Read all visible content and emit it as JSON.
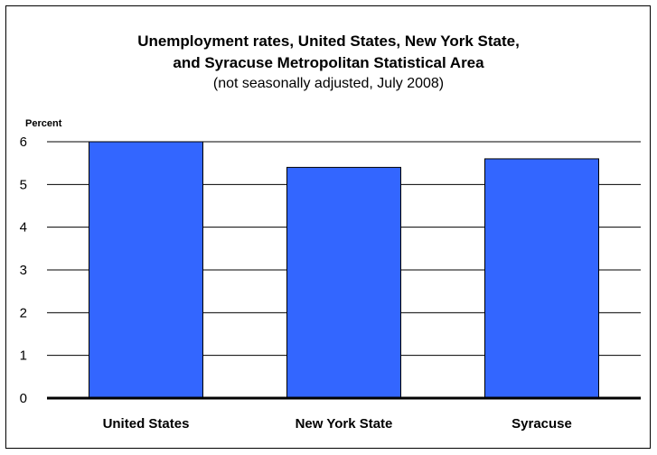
{
  "chart_data": {
    "type": "bar",
    "title_lines": [
      "Unemployment rates, United States, New York State,",
      "and Syracuse Metropolitan Statistical Area"
    ],
    "subtitle": "(not seasonally adjusted, July 2008)",
    "ylabel": "Percent",
    "xlabel": "",
    "categories": [
      "United States",
      "New York State",
      "Syracuse"
    ],
    "values": [
      6.0,
      5.4,
      5.6
    ],
    "ylim": [
      0,
      6
    ],
    "yticks": [
      0,
      1,
      2,
      3,
      4,
      5,
      6
    ],
    "grid": true,
    "bar_color": "#3366ff",
    "legend": "none"
  }
}
